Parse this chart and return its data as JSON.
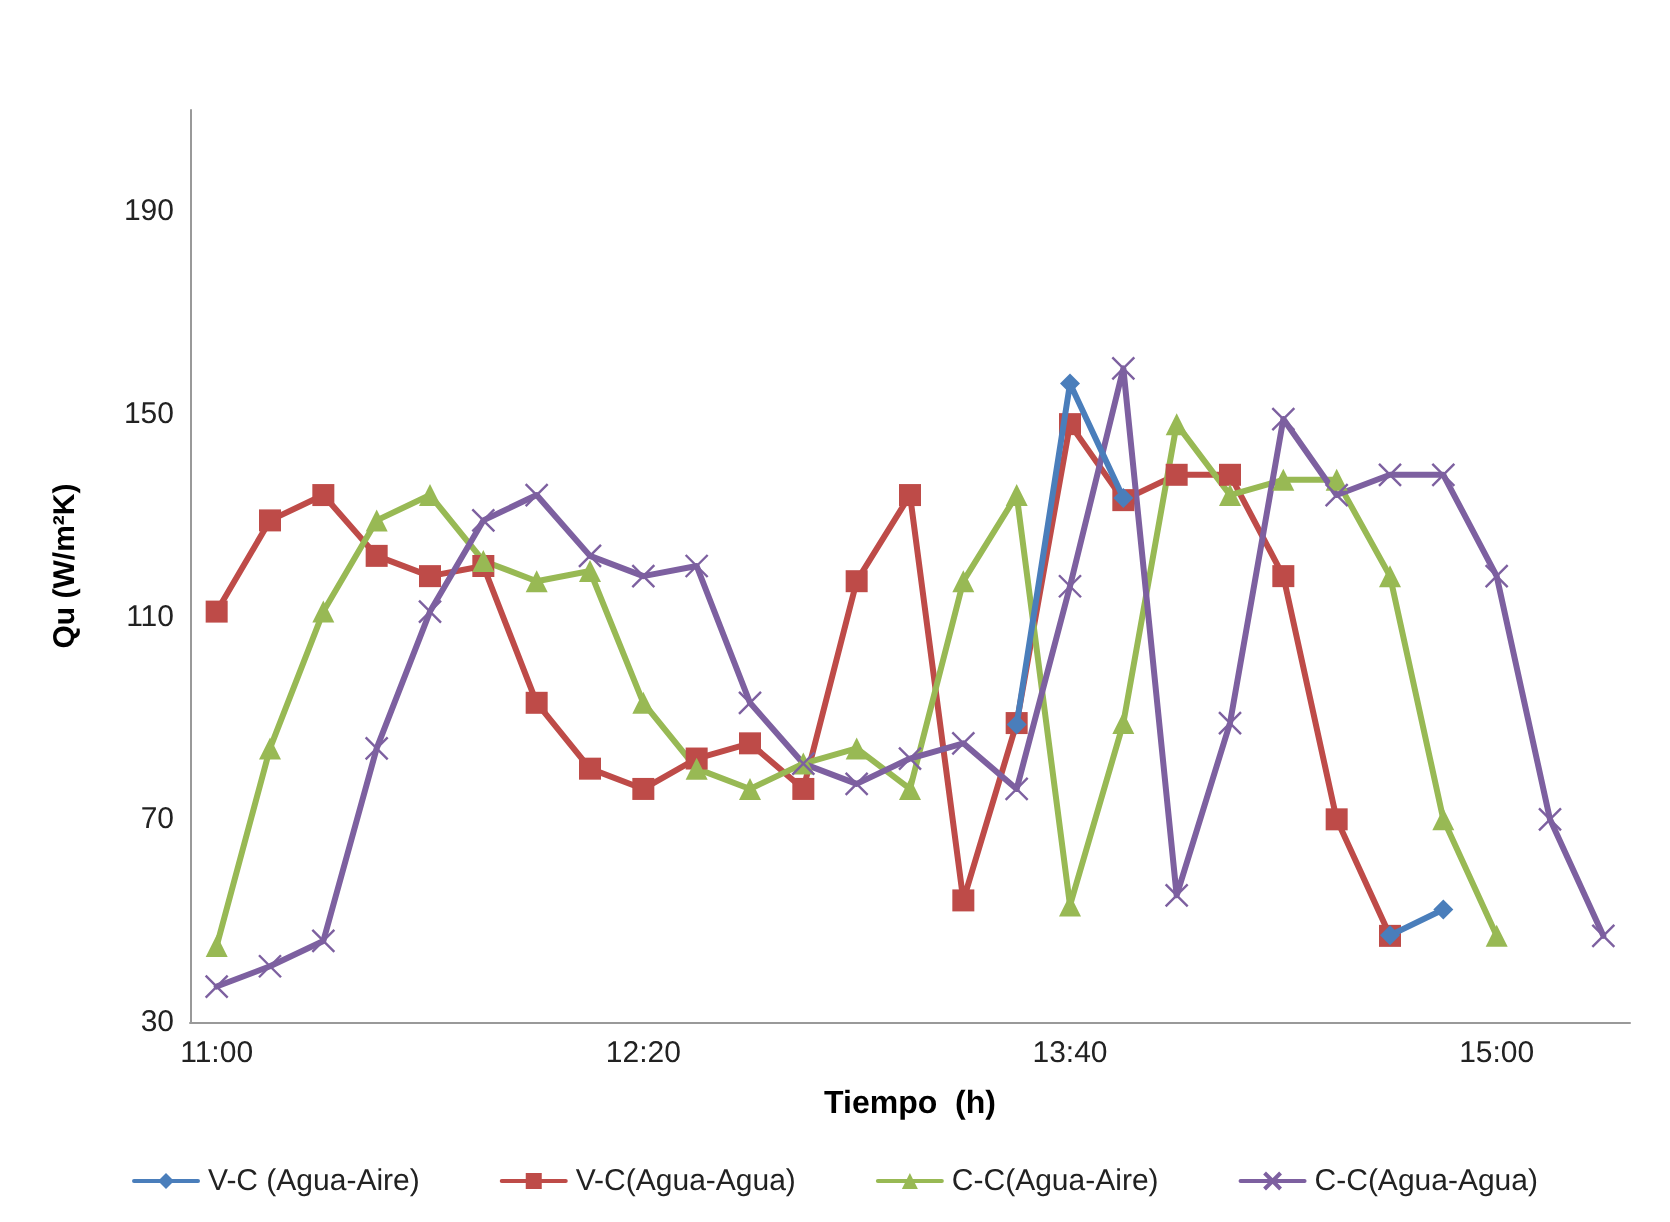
{
  "chart_data": {
    "type": "line",
    "xlabel": "Tiempo  (h)",
    "ylabel": "Qu (W/m²K)",
    "categories": [
      "11:00",
      null,
      null,
      null,
      null,
      null,
      null,
      null,
      "12:20",
      null,
      null,
      null,
      null,
      null,
      null,
      null,
      "13:40",
      null,
      null,
      null,
      null,
      null,
      null,
      null,
      "15:00",
      null,
      null
    ],
    "ylim": [
      30,
      210
    ],
    "yticks": [
      30,
      70,
      110,
      150,
      190
    ],
    "grid": false,
    "legend": "bottom",
    "series": [
      {
        "name": "V-C (Agua-Aire)",
        "color": "#4a7ebb",
        "marker": "diamond",
        "values": [
          null,
          null,
          null,
          null,
          null,
          null,
          null,
          null,
          null,
          null,
          null,
          null,
          null,
          null,
          null,
          88.7,
          156,
          133.4,
          null,
          null,
          null,
          null,
          47.1,
          52.2,
          null,
          null,
          null
        ]
      },
      {
        "name": "V-C(Agua-Agua)",
        "color": "#be4b48",
        "marker": "square",
        "values": [
          111,
          129,
          134,
          122,
          118,
          120,
          93,
          80,
          76,
          82,
          85,
          76,
          117,
          134,
          54,
          89,
          148,
          133,
          138,
          138,
          118,
          70,
          47,
          null,
          null,
          null,
          null
        ]
      },
      {
        "name": "C-C(Agua-Aire)",
        "color": "#98b954",
        "marker": "triangle",
        "values": [
          45,
          84,
          111,
          129,
          134,
          121,
          117,
          119,
          93,
          80,
          76,
          81,
          84,
          76,
          117,
          134,
          53,
          89,
          148,
          134,
          137,
          137,
          118,
          70,
          47,
          null,
          null
        ]
      },
      {
        "name": "C-C(Agua-Agua)",
        "color": "#7d60a0",
        "marker": "cross",
        "values": [
          37,
          41,
          46,
          84,
          111,
          129,
          134,
          122,
          118,
          120,
          93,
          81,
          77,
          82,
          85,
          76,
          116,
          159,
          55,
          89,
          149,
          134,
          138,
          138,
          118,
          70,
          47
        ]
      }
    ]
  }
}
